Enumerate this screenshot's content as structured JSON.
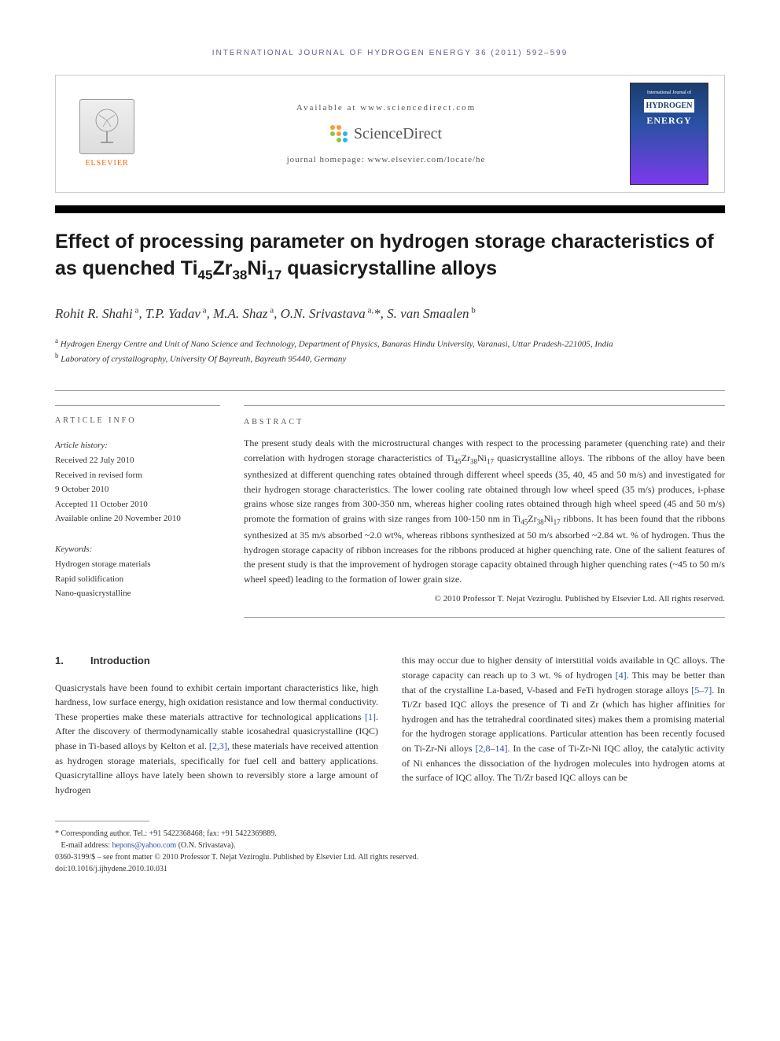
{
  "journal_header": "INTERNATIONAL JOURNAL OF HYDROGEN ENERGY 36 (2011) 592–599",
  "header": {
    "available": "Available at www.sciencedirect.com",
    "sciencedirect": "ScienceDirect",
    "homepage": "journal homepage: www.elsevier.com/locate/he",
    "elsevier": "ELSEVIER",
    "cover_line1": "International Journal of",
    "cover_line2": "HYDROGEN",
    "cover_line3": "ENERGY"
  },
  "title_parts": {
    "p1": "Effect of processing parameter on hydrogen storage characteristics of as quenched Ti",
    "s1": "45",
    "p2": "Zr",
    "s2": "38",
    "p3": "Ni",
    "s3": "17",
    "p4": " quasicrystalline alloys"
  },
  "authors_html": "Rohit R. Shahi<sup> a</sup>, T.P. Yadav<sup> a</sup>, M.A. Shaz<sup> a</sup>, O.N. Srivastava<sup> a,</sup>*, S. van Smaalen<sup> b</sup>",
  "affiliations": [
    {
      "sup": "a",
      "text": "Hydrogen Energy Centre and Unit of Nano Science and Technology, Department of Physics, Banaras Hindu University, Varanasi, Uttar Pradesh-221005, India"
    },
    {
      "sup": "b",
      "text": "Laboratory of crystallography, University Of Bayreuth, Bayreuth 95440, Germany"
    }
  ],
  "article_info": {
    "heading": "ARTICLE INFO",
    "history_label": "Article history:",
    "history": [
      "Received 22 July 2010",
      "Received in revised form",
      "9 October 2010",
      "Accepted 11 October 2010",
      "Available online 20 November 2010"
    ],
    "keywords_label": "Keywords:",
    "keywords": [
      "Hydrogen storage materials",
      "Rapid solidification",
      "Nano-quasicrystalline"
    ]
  },
  "abstract": {
    "heading": "ABSTRACT",
    "text": "The present study deals with the microstructural changes with respect to the processing parameter (quenching rate) and their correlation with hydrogen storage characteristics of Ti<sub>45</sub>Zr<sub>38</sub>Ni<sub>17</sub> quasicrystalline alloys. The ribbons of the alloy have been synthesized at different quenching rates obtained through different wheel speeds (35, 40, 45 and 50 m/s) and investigated for their hydrogen storage characteristics. The lower cooling rate obtained through low wheel speed (35 m/s) produces, i-phase grains whose size ranges from 300-350 nm, whereas higher cooling rates obtained through high wheel speed (45 and 50 m/s) promote the formation of grains with size ranges from 100-150 nm in Ti<sub>45</sub>Zr<sub>38</sub>Ni<sub>17</sub> ribbons. It has been found that the ribbons synthesized at 35 m/s absorbed ~2.0 wt%, whereas ribbons synthesized at 50 m/s absorbed ~2.84 wt. % of hydrogen. Thus the hydrogen storage capacity of ribbon increases for the ribbons produced at higher quenching rate. One of the salient features of the present study is that the improvement of hydrogen storage capacity obtained through higher quenching rates (~45 to 50 m/s wheel speed) leading to the formation of lower grain size.",
    "copyright": "© 2010 Professor T. Nejat Veziroglu. Published by Elsevier Ltd. All rights reserved."
  },
  "intro": {
    "num": "1.",
    "heading": "Introduction",
    "col1": "Quasicrystals have been found to exhibit certain important characteristics like, high hardness, low surface energy, high oxidation resistance and low thermal conductivity. These properties make these materials attractive for technological applications <span class=\"ref-link\">[1]</span>. After the discovery of thermodynamically stable icosahedral quasicrystalline (IQC) phase in Ti-based alloys by Kelton et al. <span class=\"ref-link\">[2,3]</span>, these materials have received attention as hydrogen storage materials, specifically for fuel cell and battery applications. Quasicrytalline alloys have lately been shown to reversibly store a large amount of hydrogen",
    "col2": "this may occur due to higher density of interstitial voids available in QC alloys. The storage capacity can reach up to 3 wt. % of hydrogen <span class=\"ref-link\">[4]</span>. This may be better than that of the crystalline La-based, V-based and FeTi hydrogen storage alloys <span class=\"ref-link\">[5–7]</span>. In Ti/Zr based IQC alloys the presence of Ti and Zr (which has higher affinities for hydrogen and has the tetrahedral coordinated sites) makes them a promising material for the hydrogen storage applications. Particular attention has been recently focused on Ti-Zr-Ni alloys <span class=\"ref-link\">[2,8–14]</span>. In the case of Ti-Zr-Ni IQC alloy, the catalytic activity of Ni enhances the dissociation of the hydrogen molecules into hydrogen atoms at the surface of IQC alloy. The Ti/Zr based IQC alloys can be"
  },
  "footnotes": {
    "corr": "* Corresponding author. Tel.: +91 5422368468; fax: +91 5422369889.",
    "email_label": "E-mail address: ",
    "email": "hepons@yahoo.com",
    "email_tail": " (O.N. Srivastava).",
    "line1": "0360-3199/$ – see front matter © 2010 Professor T. Nejat Veziroglu. Published by Elsevier Ltd. All rights reserved.",
    "line2": "doi:10.1016/j.ijhydene.2010.10.031"
  },
  "colors": {
    "link": "#2952a3",
    "accent_orange": "#ff6600",
    "header_purple": "#6b5b8f",
    "sd_orange": "#ff9933",
    "sd_green": "#8bc34a",
    "sd_blue": "#29b6f6"
  }
}
